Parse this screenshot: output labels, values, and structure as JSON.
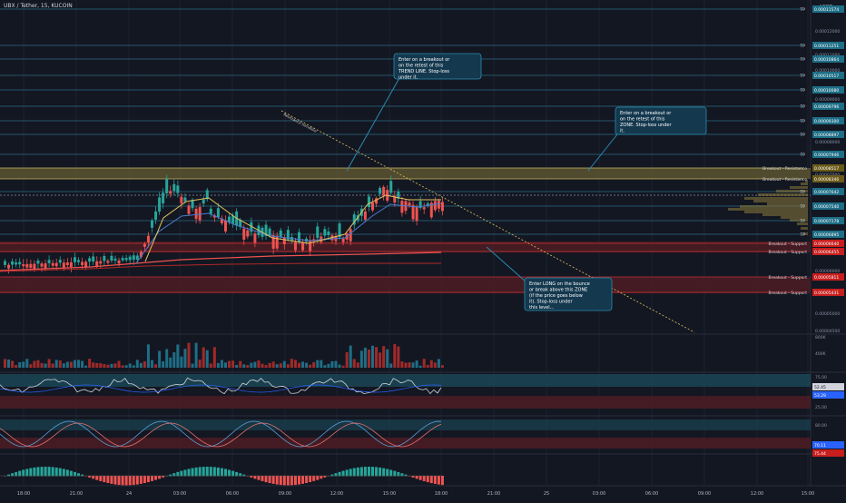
{
  "header": {
    "symbol": "UBX / Tether, 15, KUCOIN"
  },
  "currency": "USDT",
  "tp_label": "TP",
  "colors": {
    "bg": "#131722",
    "bull": "#26a69a",
    "bear": "#ef5350",
    "teal_box": "#1b4a5a",
    "label_teal": "#1e6e86",
    "label_red": "#c81e1e",
    "note_bg": "#14384e",
    "note_border": "#2a8cb0",
    "resist_fill": "#5c5530",
    "support_fill": "#4a1c24"
  },
  "price_axis": {
    "ticks": [
      "0.00012000",
      "0.00011000",
      "0.00010000",
      "0.00009000",
      "0.00008000",
      "0.00007000",
      "0.00006000",
      "0.00005000",
      "0.00004500"
    ]
  },
  "tp_levels": [
    "0.00011574",
    "0.00011251",
    "0.00010864",
    "0.00010517",
    "0.00010080",
    "0.00009796",
    "0.00009300",
    "0.00008897",
    "0.00007946",
    "0.00007642",
    "0.00007540",
    "0.00007178",
    "0.00006895"
  ],
  "breakout_levels": [
    {
      "label": "Breakout - Resistance",
      "price": "0.00008517",
      "kind": "resistance"
    },
    {
      "label": "Breakout - Resistance",
      "price": "0.00008346",
      "kind": "resistance"
    },
    {
      "label": "Breakout - Support",
      "price": "0.00006640",
      "kind": "support"
    },
    {
      "label": "Breakout - Support",
      "price": "0.00006455",
      "kind": "support"
    },
    {
      "label": "Breakout - Support",
      "price": "0.00005811",
      "kind": "support"
    },
    {
      "label": "Breakout - Support",
      "price": "0.00005431",
      "kind": "support"
    }
  ],
  "trendline_label": "Resistance trendline",
  "annotations": [
    {
      "text": "Enter on a breakout or on the retest of this TREND LINE. Stop-loss under it."
    },
    {
      "text": "Enter on a breakout or on the retest of this ZONE. Stop-loss under it."
    },
    {
      "text": "Enter LONG on the bounce or break above this ZONE (if the price goes below it). Stop-loss under this level..."
    }
  ],
  "volume_axis": [
    "800K",
    "400K"
  ],
  "rsi": {
    "levels": [
      "75.00",
      "25.00"
    ],
    "value_a": "52.45",
    "value_b": "53.29"
  },
  "stoch": {
    "levels": [
      "80.00"
    ],
    "value_a": "70.11",
    "value_b": "75.44"
  },
  "time_axis": [
    "18:00",
    "21:00",
    "24",
    "03:00",
    "06:00",
    "09:00",
    "12:00",
    "15:00",
    "18:00",
    "21:00",
    "25",
    "03:00",
    "06:00",
    "09:00",
    "12:00",
    "15:00"
  ]
}
